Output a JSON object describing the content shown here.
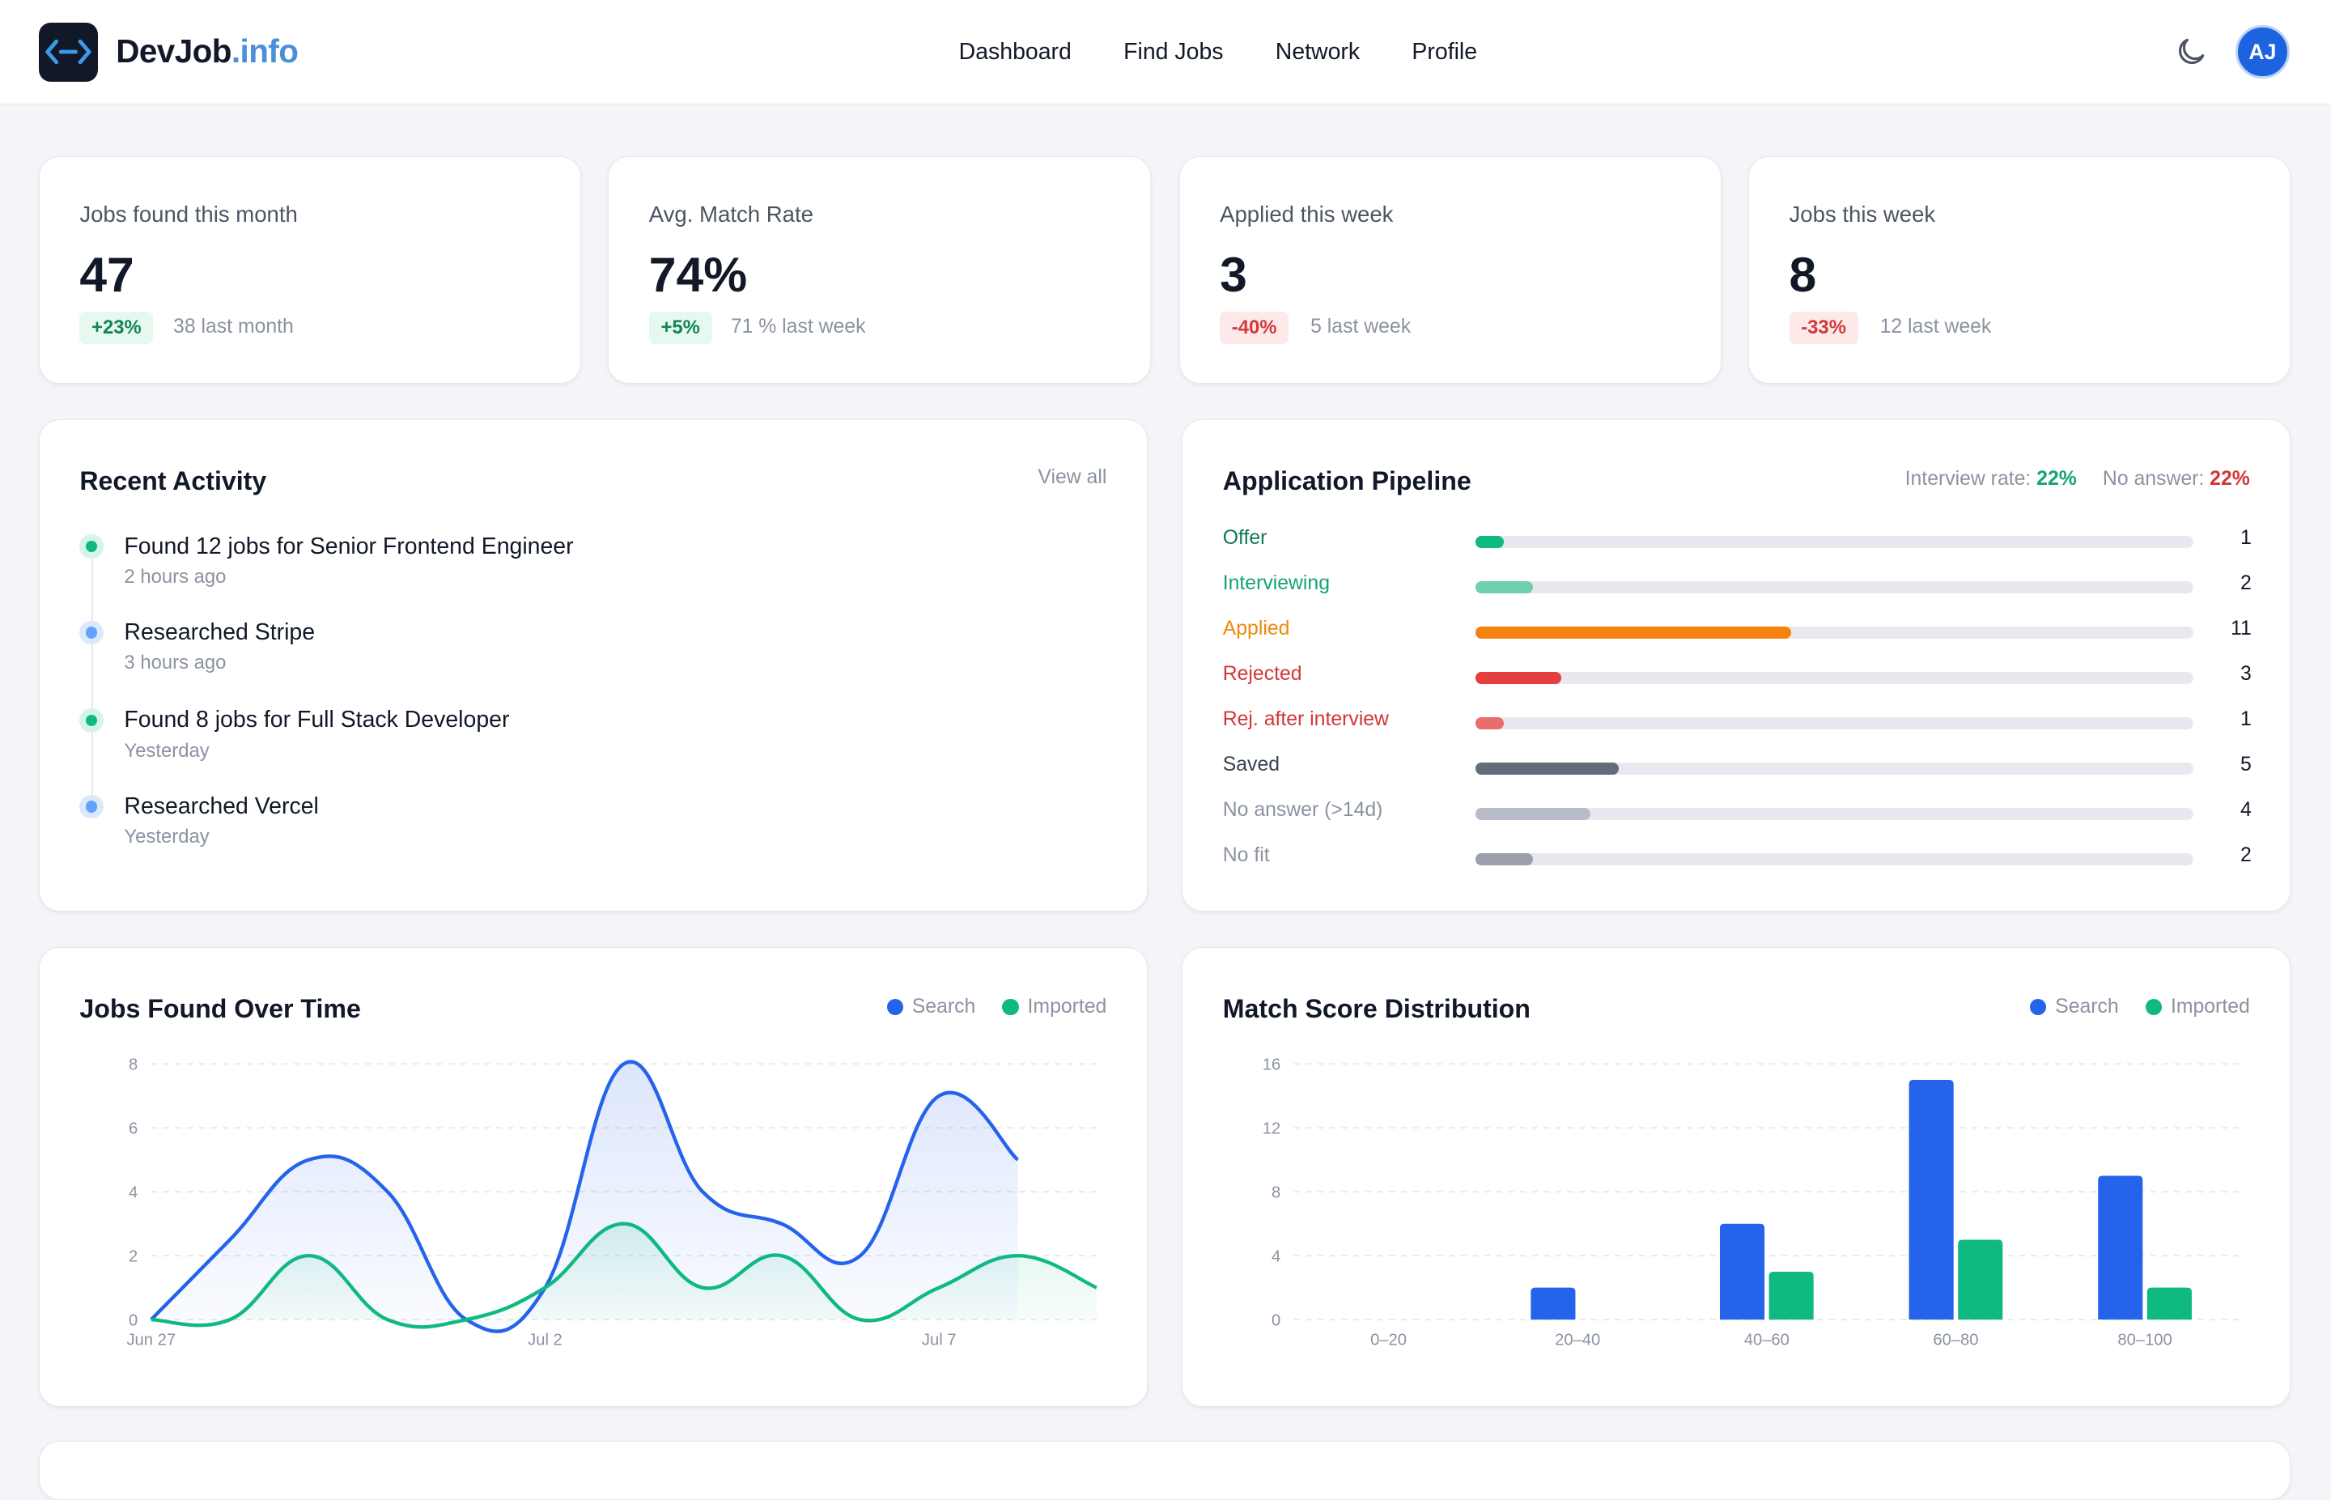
{
  "header": {
    "brand_name": "DevJob",
    "brand_tld": ".info",
    "nav": [
      "Dashboard",
      "Find Jobs",
      "Network",
      "Profile"
    ],
    "avatar_initials": "AJ"
  },
  "stats": [
    {
      "label": "Jobs found this month",
      "value": "47",
      "badge": "+23%",
      "trend": "up",
      "sub": "38 last month"
    },
    {
      "label": "Avg. Match Rate",
      "value": "74%",
      "badge": "+5%",
      "trend": "up",
      "sub": "71 % last week"
    },
    {
      "label": "Applied this week",
      "value": "3",
      "badge": "-40%",
      "trend": "down",
      "sub": "5 last week"
    },
    {
      "label": "Jobs this week",
      "value": "8",
      "badge": "-33%",
      "trend": "down",
      "sub": "12 last week"
    }
  ],
  "activity": {
    "title": "Recent Activity",
    "view_all": "View all",
    "items": [
      {
        "title": "Found 12 jobs for Senior Frontend Engineer",
        "time": "2 hours ago",
        "color": "#10b981"
      },
      {
        "title": "Researched Stripe",
        "time": "3 hours ago",
        "color": "#60a5fa"
      },
      {
        "title": "Found 8 jobs for Full Stack Developer",
        "time": "Yesterday",
        "color": "#10b981"
      },
      {
        "title": "Researched Vercel",
        "time": "Yesterday",
        "color": "#60a5fa"
      }
    ]
  },
  "pipeline": {
    "title": "Application Pipeline",
    "interview_rate_label": "Interview rate:",
    "interview_rate": "22%",
    "no_answer_label": "No answer:",
    "no_answer": "22%",
    "max": 25,
    "rows": [
      {
        "label": "Offer",
        "count": 1,
        "color": "#10b981",
        "label_color": "#0f7a55"
      },
      {
        "label": "Interviewing",
        "count": 2,
        "color": "#6fcfaf",
        "label_color": "#13a57a"
      },
      {
        "label": "Applied",
        "count": 11,
        "color": "#f5820f",
        "label_color": "#ef8a0e"
      },
      {
        "label": "Rejected",
        "count": 3,
        "color": "#e53e3e",
        "label_color": "#d33636"
      },
      {
        "label": "Rej. after interview",
        "count": 1,
        "color": "#ec6b6b",
        "label_color": "#d33636"
      },
      {
        "label": "Saved",
        "count": 5,
        "color": "#646b7a",
        "label_color": "#374151"
      },
      {
        "label": "No answer (>14d)",
        "count": 4,
        "color": "#b8bcc8",
        "label_color": "#8b93a1"
      },
      {
        "label": "No fit",
        "count": 2,
        "color": "#9ca0ad",
        "label_color": "#8b93a1"
      }
    ]
  },
  "colors": {
    "search": "#2563eb",
    "imported": "#10b981"
  },
  "legend": {
    "search": "Search",
    "imported": "Imported"
  },
  "chart_data": [
    {
      "type": "area",
      "title": "Jobs Found Over Time",
      "x": [
        "Jun 27",
        "Jun 28",
        "Jun 29",
        "Jun 30",
        "Jul 1",
        "Jul 2",
        "Jul 3",
        "Jul 4",
        "Jul 5",
        "Jul 6",
        "Jul 7",
        "Jul 8",
        "Jul 9"
      ],
      "x_ticks": [
        "Jun 27",
        "Jul 2",
        "Jul 7"
      ],
      "series": [
        {
          "name": "Search",
          "values": [
            0,
            2.5,
            5,
            4,
            0,
            1,
            8,
            4,
            3,
            2,
            7,
            5,
            null
          ]
        },
        {
          "name": "Imported",
          "values": [
            0,
            0,
            2,
            0,
            0,
            1,
            3,
            1,
            2,
            0,
            1,
            2,
            1
          ]
        }
      ],
      "ylim": [
        0,
        8
      ],
      "y_ticks": [
        0,
        2,
        4,
        6,
        8
      ],
      "grid": true,
      "legend_position": "top-right"
    },
    {
      "type": "bar",
      "title": "Match Score Distribution",
      "categories": [
        "0–20",
        "20–40",
        "40–60",
        "60–80",
        "80–100"
      ],
      "series": [
        {
          "name": "Search",
          "values": [
            0,
            2,
            6,
            15,
            9
          ]
        },
        {
          "name": "Imported",
          "values": [
            0,
            0,
            3,
            5,
            2
          ]
        }
      ],
      "ylim": [
        0,
        16
      ],
      "y_ticks": [
        0,
        4,
        8,
        12,
        16
      ],
      "grid": true,
      "legend_position": "top-right"
    }
  ]
}
